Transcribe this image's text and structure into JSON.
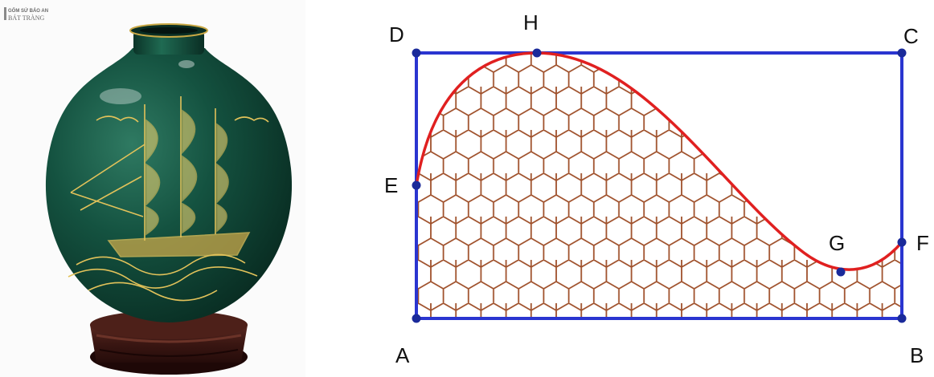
{
  "photo": {
    "watermark": {
      "line1": "GỐM SỨ BẢO AN",
      "line2": "BÁT TRÀNG"
    }
  },
  "diagram": {
    "colors": {
      "rect": "#2a35d0",
      "curve": "#e02020",
      "hex": "#a0522d",
      "point": "#1a2a9a"
    },
    "points": [
      {
        "id": "A",
        "label": "A"
      },
      {
        "id": "B",
        "label": "B"
      },
      {
        "id": "C",
        "label": "C"
      },
      {
        "id": "D",
        "label": "D"
      },
      {
        "id": "E",
        "label": "E"
      },
      {
        "id": "F",
        "label": "F"
      },
      {
        "id": "G",
        "label": "G"
      },
      {
        "id": "H",
        "label": "H"
      }
    ]
  }
}
